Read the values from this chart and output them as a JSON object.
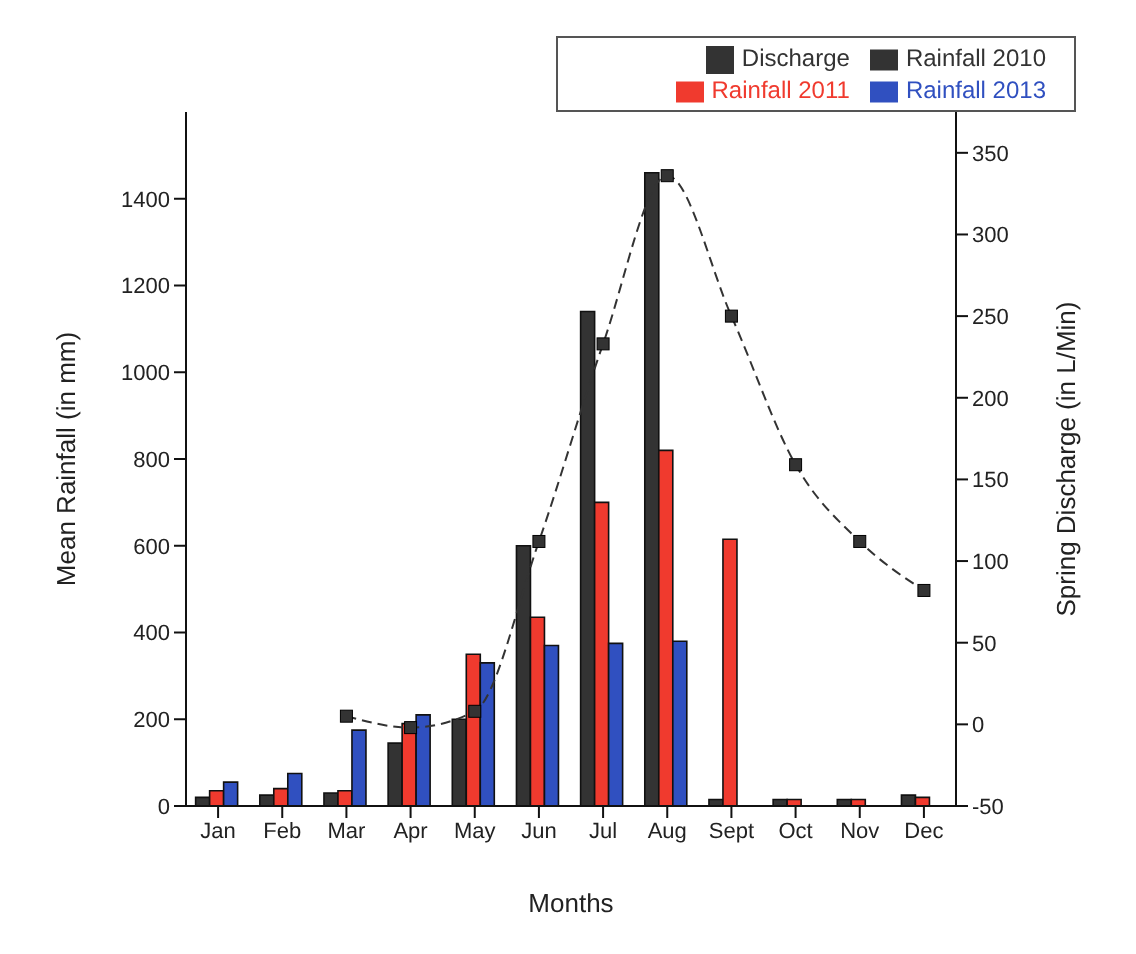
{
  "chart_data": {
    "type": "bar",
    "xlabel": "Months",
    "ylabel": "Mean Rainfall (in mm)",
    "y2label": "Spring Discharge (in L/Min)",
    "categories": [
      "Jan",
      "Feb",
      "Mar",
      "Apr",
      "May",
      "Jun",
      "Jul",
      "Aug",
      "Sept",
      "Oct",
      "Nov",
      "Dec"
    ],
    "series": [
      {
        "name": "Discharge",
        "type": "line",
        "axis": "y2",
        "color": "#333333",
        "line_style": "dashed",
        "marker": "square",
        "values": [
          null,
          null,
          5,
          -2,
          8,
          112,
          233,
          336,
          250,
          159,
          112,
          82
        ]
      },
      {
        "name": "Rainfall 2010",
        "color": "#333333",
        "values": [
          20,
          25,
          30,
          145,
          200,
          600,
          1140,
          1460,
          15,
          15,
          15,
          25
        ]
      },
      {
        "name": "Rainfall 2011",
        "color": "#f03a2e",
        "values": [
          35,
          40,
          35,
          190,
          350,
          435,
          700,
          820,
          615,
          15,
          15,
          20
        ]
      },
      {
        "name": "Rainfall 2013",
        "color": "#3050c0",
        "values": [
          55,
          75,
          175,
          210,
          330,
          370,
          375,
          380,
          null,
          null,
          null,
          null
        ]
      }
    ],
    "ylim": [
      0,
      1600
    ],
    "yticks": [
      0,
      200,
      400,
      600,
      800,
      1000,
      1200,
      1400
    ],
    "y2lim": [
      -50,
      375
    ],
    "y2ticks": [
      -50,
      0,
      50,
      100,
      150,
      200,
      250,
      300,
      350
    ],
    "legend": "top right",
    "grid": false
  }
}
